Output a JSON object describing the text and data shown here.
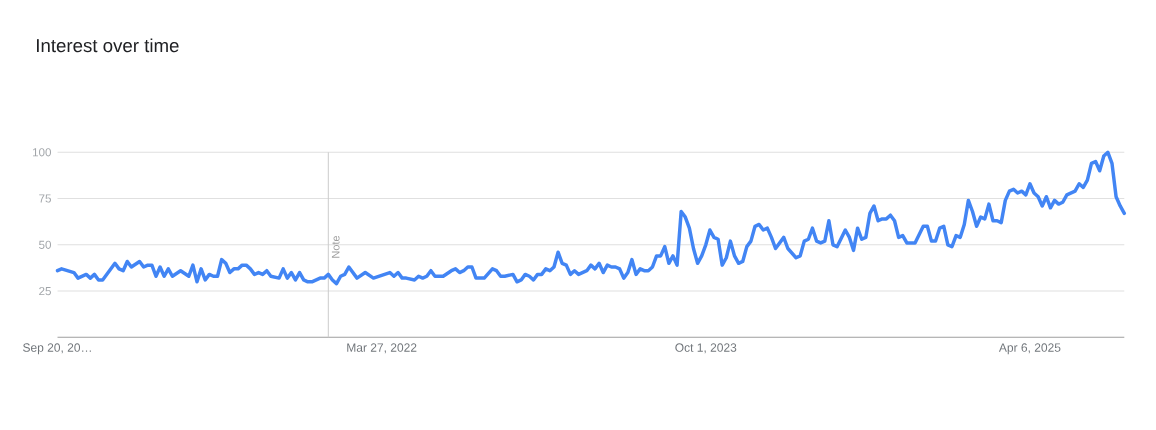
{
  "chart_data": {
    "type": "line",
    "title": "Interest over time",
    "xlim": [
      "2020-09-20",
      "2025-09-14"
    ],
    "xticks": [
      {
        "value": "2020-09-20",
        "label": "Sep 20, 20…"
      },
      {
        "value": "2022-03-27",
        "label": "Mar 27, 2022"
      },
      {
        "value": "2023-10-01",
        "label": "Oct 1, 2023"
      },
      {
        "value": "2025-04-06",
        "label": "Apr 6, 2025"
      }
    ],
    "ylim": [
      0,
      100
    ],
    "yticks": [
      25,
      50,
      75,
      100
    ],
    "grid": "y",
    "ref_lines": [
      {
        "axis": "x",
        "value": "2021-12-26",
        "label": "Note",
        "color": "#cccccc"
      }
    ],
    "x": [
      "2020-09-20",
      "2020-09-27",
      "2020-10-18",
      "2020-10-25",
      "2020-11-08",
      "2020-11-15",
      "2020-11-22",
      "2020-11-29",
      "2020-12-06",
      "2020-12-27",
      "2021-01-03",
      "2021-01-10",
      "2021-01-17",
      "2021-01-24",
      "2021-02-07",
      "2021-02-14",
      "2021-02-21",
      "2021-02-28",
      "2021-03-07",
      "2021-03-14",
      "2021-03-21",
      "2021-03-28",
      "2021-04-04",
      "2021-04-18",
      "2021-05-02",
      "2021-05-09",
      "2021-05-16",
      "2021-05-23",
      "2021-05-30",
      "2021-06-06",
      "2021-06-13",
      "2021-06-20",
      "2021-06-27",
      "2021-07-04",
      "2021-07-11",
      "2021-07-18",
      "2021-07-25",
      "2021-08-01",
      "2021-08-08",
      "2021-08-15",
      "2021-08-22",
      "2021-08-29",
      "2021-09-05",
      "2021-09-12",
      "2021-09-19",
      "2021-10-03",
      "2021-10-10",
      "2021-10-17",
      "2021-10-24",
      "2021-10-31",
      "2021-11-07",
      "2021-11-14",
      "2021-11-21",
      "2021-11-28",
      "2021-12-12",
      "2021-12-19",
      "2021-12-26",
      "2022-01-02",
      "2022-01-09",
      "2022-01-16",
      "2022-01-23",
      "2022-01-30",
      "2022-02-06",
      "2022-02-13",
      "2022-02-27",
      "2022-03-13",
      "2022-04-10",
      "2022-04-17",
      "2022-04-24",
      "2022-05-01",
      "2022-05-08",
      "2022-05-22",
      "2022-05-29",
      "2022-06-05",
      "2022-06-12",
      "2022-06-19",
      "2022-06-26",
      "2022-07-10",
      "2022-07-24",
      "2022-07-31",
      "2022-08-07",
      "2022-08-14",
      "2022-08-21",
      "2022-08-28",
      "2022-09-04",
      "2022-09-18",
      "2022-10-02",
      "2022-10-09",
      "2022-10-16",
      "2022-10-23",
      "2022-11-06",
      "2022-11-13",
      "2022-11-20",
      "2022-11-27",
      "2022-12-04",
      "2022-12-11",
      "2022-12-18",
      "2022-12-25",
      "2023-01-01",
      "2023-01-08",
      "2023-01-15",
      "2023-01-22",
      "2023-01-29",
      "2023-02-05",
      "2023-02-12",
      "2023-02-19",
      "2023-02-26",
      "2023-03-05",
      "2023-03-12",
      "2023-03-19",
      "2023-03-26",
      "2023-04-02",
      "2023-04-09",
      "2023-04-16",
      "2023-04-23",
      "2023-04-30",
      "2023-05-07",
      "2023-05-14",
      "2023-05-21",
      "2023-05-28",
      "2023-06-04",
      "2023-06-11",
      "2023-06-18",
      "2023-06-25",
      "2023-07-02",
      "2023-07-09",
      "2023-07-16",
      "2023-07-23",
      "2023-07-30",
      "2023-08-06",
      "2023-08-13",
      "2023-08-20",
      "2023-08-27",
      "2023-09-03",
      "2023-09-10",
      "2023-09-17",
      "2023-09-24",
      "2023-10-01",
      "2023-10-08",
      "2023-10-15",
      "2023-10-22",
      "2023-10-29",
      "2023-11-05",
      "2023-11-12",
      "2023-11-19",
      "2023-11-26",
      "2023-12-03",
      "2023-12-10",
      "2023-12-17",
      "2023-12-24",
      "2023-12-31",
      "2024-01-07",
      "2024-01-14",
      "2024-01-21",
      "2024-01-28",
      "2024-02-11",
      "2024-02-18",
      "2024-03-03",
      "2024-03-10",
      "2024-03-17",
      "2024-03-24",
      "2024-03-31",
      "2024-04-07",
      "2024-04-14",
      "2024-04-21",
      "2024-04-28",
      "2024-05-05",
      "2024-05-12",
      "2024-05-26",
      "2024-06-02",
      "2024-06-09",
      "2024-06-16",
      "2024-06-23",
      "2024-06-30",
      "2024-07-07",
      "2024-07-14",
      "2024-07-21",
      "2024-07-28",
      "2024-08-04",
      "2024-08-11",
      "2024-08-18",
      "2024-08-25",
      "2024-09-01",
      "2024-09-08",
      "2024-09-22",
      "2024-10-06",
      "2024-10-13",
      "2024-10-20",
      "2024-10-27",
      "2024-11-03",
      "2024-11-10",
      "2024-11-17",
      "2024-11-24",
      "2024-12-01",
      "2024-12-08",
      "2024-12-15",
      "2024-12-22",
      "2024-12-29",
      "2025-01-05",
      "2025-01-12",
      "2025-01-19",
      "2025-01-26",
      "2025-02-02",
      "2025-02-09",
      "2025-02-16",
      "2025-02-23",
      "2025-03-02",
      "2025-03-09",
      "2025-03-16",
      "2025-03-23",
      "2025-03-30",
      "2025-04-06",
      "2025-04-13",
      "2025-04-20",
      "2025-04-27",
      "2025-05-04",
      "2025-05-11",
      "2025-05-18",
      "2025-05-25",
      "2025-06-01",
      "2025-06-08",
      "2025-06-15",
      "2025-06-22",
      "2025-06-29",
      "2025-07-06",
      "2025-07-13",
      "2025-07-20",
      "2025-07-27",
      "2025-08-03",
      "2025-08-10",
      "2025-08-17",
      "2025-08-24",
      "2025-08-31",
      "2025-09-07",
      "2025-09-14"
    ],
    "series": [
      {
        "color": "#4285f4",
        "values": [
          36,
          37,
          35,
          32,
          34,
          32,
          34,
          31,
          31,
          40,
          37,
          36,
          41,
          38,
          41,
          38,
          39,
          39,
          33,
          38,
          33,
          37,
          33,
          36,
          33,
          39,
          30,
          37,
          31,
          34,
          33,
          33,
          42,
          40,
          35,
          37,
          37,
          39,
          39,
          37,
          34,
          35,
          34,
          36,
          33,
          32,
          37,
          32,
          35,
          31,
          35,
          31,
          30,
          30,
          32,
          32,
          34,
          31,
          29,
          33,
          34,
          38,
          35,
          32,
          35,
          32,
          35,
          33,
          35,
          32,
          32,
          31,
          33,
          32,
          33,
          36,
          33,
          33,
          36,
          37,
          35,
          36,
          38,
          38,
          32,
          32,
          37,
          36,
          33,
          33,
          34,
          30,
          31,
          34,
          33,
          31,
          34,
          34,
          37,
          36,
          38,
          46,
          40,
          39,
          34,
          36,
          34,
          35,
          36,
          39,
          37,
          40,
          35,
          39,
          38,
          38,
          37,
          32,
          35,
          42,
          34,
          37,
          36,
          36,
          38,
          44,
          44,
          49,
          40,
          44,
          39,
          68,
          65,
          59,
          48,
          40,
          44,
          50,
          58,
          54,
          53,
          39,
          43,
          52,
          44,
          40,
          41,
          49,
          52,
          60,
          61,
          58,
          59,
          54,
          48,
          54,
          48,
          43,
          44,
          52,
          53,
          59,
          52,
          51,
          52,
          63,
          50,
          49,
          58,
          54,
          47,
          59,
          53,
          54,
          67,
          71,
          63,
          64,
          64,
          66,
          63,
          54,
          55,
          51,
          51,
          60,
          60,
          52,
          52,
          59,
          60,
          50,
          49,
          55,
          54,
          61,
          74,
          68,
          60,
          65,
          64,
          72,
          63,
          63,
          62,
          74,
          79,
          80,
          78,
          79,
          77,
          83,
          78,
          76,
          71,
          76,
          70,
          74,
          72,
          73,
          77,
          78,
          79,
          83,
          81,
          85,
          94,
          95,
          90,
          98,
          100,
          94,
          76,
          71,
          67
        ]
      }
    ]
  }
}
